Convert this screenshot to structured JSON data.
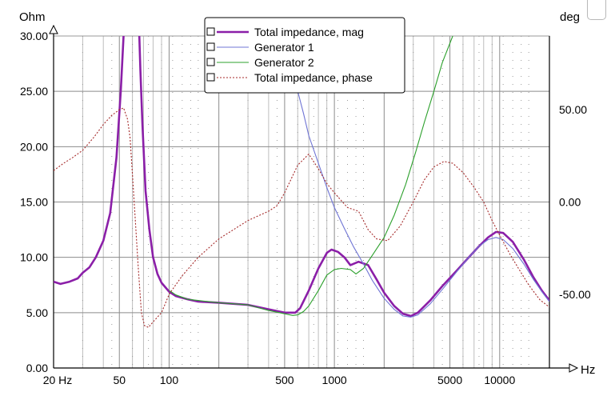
{
  "chart_data": {
    "type": "line",
    "xscale": "log",
    "xlim": [
      20,
      20000
    ],
    "ylim": [
      0,
      30
    ],
    "y2lim": [
      -90,
      90
    ],
    "grid": true,
    "legend_position": "top-center",
    "xlabel": "Hz",
    "ylabel": "Ohm",
    "y2label": "deg",
    "x_tick_labels": [
      {
        "value": 20,
        "label": "20 Hz"
      },
      {
        "value": 50,
        "label": "50"
      },
      {
        "value": 100,
        "label": "100"
      },
      {
        "value": 500,
        "label": "500"
      },
      {
        "value": 1000,
        "label": "1000"
      },
      {
        "value": 5000,
        "label": "5000"
      },
      {
        "value": 10000,
        "label": "10000"
      }
    ],
    "y_tick_labels": [
      {
        "value": 0,
        "label": "0.00"
      },
      {
        "value": 5,
        "label": "5.00"
      },
      {
        "value": 10,
        "label": "10.00"
      },
      {
        "value": 15,
        "label": "15.00"
      },
      {
        "value": 20,
        "label": "20.00"
      },
      {
        "value": 25,
        "label": "25.00"
      },
      {
        "value": 30,
        "label": "30.00"
      }
    ],
    "y2_tick_labels": [
      {
        "value": 50,
        "label": "50.00"
      },
      {
        "value": 0,
        "label": "0.00"
      },
      {
        "value": -50,
        "label": "-50.00"
      }
    ],
    "series": [
      {
        "name": "Total impedance, mag",
        "axis": "left",
        "color": "#8b1fa8",
        "style": "solid-thick",
        "points": [
          [
            20,
            7.8
          ],
          [
            22,
            7.6
          ],
          [
            25,
            7.8
          ],
          [
            28,
            8.1
          ],
          [
            30,
            8.6
          ],
          [
            33,
            9.1
          ],
          [
            36,
            10
          ],
          [
            40,
            11.5
          ],
          [
            44,
            14
          ],
          [
            48,
            19
          ],
          [
            51,
            25
          ],
          [
            53,
            30
          ],
          [
            58,
            33
          ],
          [
            63,
            33
          ],
          [
            66,
            30
          ],
          [
            67,
            27
          ],
          [
            69,
            22
          ],
          [
            72,
            16
          ],
          [
            76,
            12.5
          ],
          [
            80,
            10
          ],
          [
            85,
            8.5
          ],
          [
            90,
            7.7
          ],
          [
            100,
            6.9
          ],
          [
            110,
            6.5
          ],
          [
            130,
            6.2
          ],
          [
            150,
            6.0
          ],
          [
            200,
            5.9
          ],
          [
            300,
            5.7
          ],
          [
            400,
            5.3
          ],
          [
            500,
            5.0
          ],
          [
            580,
            5.0
          ],
          [
            620,
            5.4
          ],
          [
            700,
            7.0
          ],
          [
            800,
            9.0
          ],
          [
            900,
            10.4
          ],
          [
            960,
            10.7
          ],
          [
            1050,
            10.5
          ],
          [
            1150,
            10.0
          ],
          [
            1250,
            9.3
          ],
          [
            1400,
            9.6
          ],
          [
            1600,
            9.3
          ],
          [
            1800,
            8.0
          ],
          [
            2000,
            6.8
          ],
          [
            2300,
            5.6
          ],
          [
            2600,
            4.9
          ],
          [
            2900,
            4.7
          ],
          [
            3200,
            5.0
          ],
          [
            3800,
            6.1
          ],
          [
            4500,
            7.4
          ],
          [
            5500,
            8.8
          ],
          [
            6500,
            10.0
          ],
          [
            7500,
            11.0
          ],
          [
            8500,
            11.8
          ],
          [
            9500,
            12.3
          ],
          [
            10500,
            12.2
          ],
          [
            12000,
            11.4
          ],
          [
            14000,
            9.8
          ],
          [
            16000,
            8.2
          ],
          [
            18000,
            7.0
          ],
          [
            20000,
            6.1
          ]
        ]
      },
      {
        "name": "Generator 1",
        "axis": "left",
        "color": "#6f74d4",
        "style": "solid-thin",
        "points": [
          [
            600,
            25
          ],
          [
            650,
            23
          ],
          [
            700,
            21
          ],
          [
            800,
            18.5
          ],
          [
            900,
            16.3
          ],
          [
            1000,
            14.5
          ],
          [
            1150,
            12.6
          ],
          [
            1300,
            11
          ],
          [
            1500,
            9.4
          ],
          [
            1700,
            7.9
          ],
          [
            2000,
            6.3
          ],
          [
            2300,
            5.3
          ],
          [
            2600,
            4.7
          ],
          [
            2900,
            4.6
          ],
          [
            3200,
            4.8
          ],
          [
            3800,
            5.8
          ],
          [
            4500,
            7.1
          ],
          [
            5500,
            8.7
          ],
          [
            6500,
            10.0
          ],
          [
            7500,
            11.0
          ],
          [
            8500,
            11.6
          ],
          [
            9500,
            11.8
          ],
          [
            10500,
            11.6
          ],
          [
            12000,
            10.8
          ],
          [
            14000,
            9.4
          ],
          [
            16000,
            8.0
          ],
          [
            18000,
            6.9
          ],
          [
            20000,
            6.0
          ]
        ]
      },
      {
        "name": "Generator 2",
        "axis": "left",
        "color": "#2ca02c",
        "style": "solid-thin",
        "points": [
          [
            100,
            7.0
          ],
          [
            110,
            6.6
          ],
          [
            130,
            6.2
          ],
          [
            150,
            6.1
          ],
          [
            200,
            5.9
          ],
          [
            300,
            5.7
          ],
          [
            400,
            5.2
          ],
          [
            500,
            4.9
          ],
          [
            560,
            4.75
          ],
          [
            600,
            4.8
          ],
          [
            650,
            5.1
          ],
          [
            700,
            5.6
          ],
          [
            800,
            7.0
          ],
          [
            900,
            8.4
          ],
          [
            1000,
            8.9
          ],
          [
            1100,
            9.0
          ],
          [
            1250,
            8.9
          ],
          [
            1350,
            8.5
          ],
          [
            1500,
            9.0
          ],
          [
            1700,
            10.2
          ],
          [
            2000,
            11.8
          ],
          [
            2300,
            13.8
          ],
          [
            2700,
            16.6
          ],
          [
            3100,
            19.5
          ],
          [
            3500,
            22.2
          ],
          [
            4000,
            25.0
          ],
          [
            4500,
            27.6
          ],
          [
            5200,
            30.0
          ]
        ]
      },
      {
        "name": "Total impedance, phase",
        "axis": "right",
        "color": "#a52a2a",
        "style": "dotted",
        "points": [
          [
            20,
            17
          ],
          [
            23,
            21
          ],
          [
            26,
            24
          ],
          [
            30,
            28
          ],
          [
            35,
            35
          ],
          [
            40,
            42
          ],
          [
            45,
            47
          ],
          [
            50,
            50
          ],
          [
            53,
            51
          ],
          [
            56,
            45
          ],
          [
            58,
            35
          ],
          [
            60,
            15
          ],
          [
            62,
            -5
          ],
          [
            65,
            -35
          ],
          [
            68,
            -60
          ],
          [
            71,
            -67
          ],
          [
            75,
            -68
          ],
          [
            80,
            -65
          ],
          [
            90,
            -60
          ],
          [
            100,
            -50
          ],
          [
            120,
            -40
          ],
          [
            150,
            -30
          ],
          [
            200,
            -20
          ],
          [
            300,
            -10
          ],
          [
            400,
            -5
          ],
          [
            450,
            -2
          ],
          [
            500,
            5
          ],
          [
            600,
            20
          ],
          [
            700,
            26
          ],
          [
            800,
            18
          ],
          [
            900,
            10
          ],
          [
            1000,
            5
          ],
          [
            1200,
            -3
          ],
          [
            1400,
            -5
          ],
          [
            1600,
            -15
          ],
          [
            1800,
            -20
          ],
          [
            2100,
            -21
          ],
          [
            2500,
            -13
          ],
          [
            3000,
            0
          ],
          [
            3500,
            12
          ],
          [
            4000,
            19
          ],
          [
            4600,
            22
          ],
          [
            5200,
            21
          ],
          [
            6000,
            16
          ],
          [
            7000,
            8
          ],
          [
            8000,
            0
          ],
          [
            9000,
            -10
          ],
          [
            10000,
            -18
          ],
          [
            11500,
            -28
          ],
          [
            13000,
            -36
          ],
          [
            15000,
            -45
          ],
          [
            17500,
            -53
          ],
          [
            20000,
            -57
          ]
        ]
      }
    ],
    "legend_entries": [
      {
        "label": "Total impedance, mag",
        "color": "#8b1fa8",
        "style": "solid-thick"
      },
      {
        "label": "Generator 1",
        "color": "#6f74d4",
        "style": "solid-thin"
      },
      {
        "label": "Generator 2",
        "color": "#2ca02c",
        "style": "solid-thin"
      },
      {
        "label": "Total impedance, phase",
        "color": "#a52a2a",
        "style": "dotted"
      }
    ]
  }
}
